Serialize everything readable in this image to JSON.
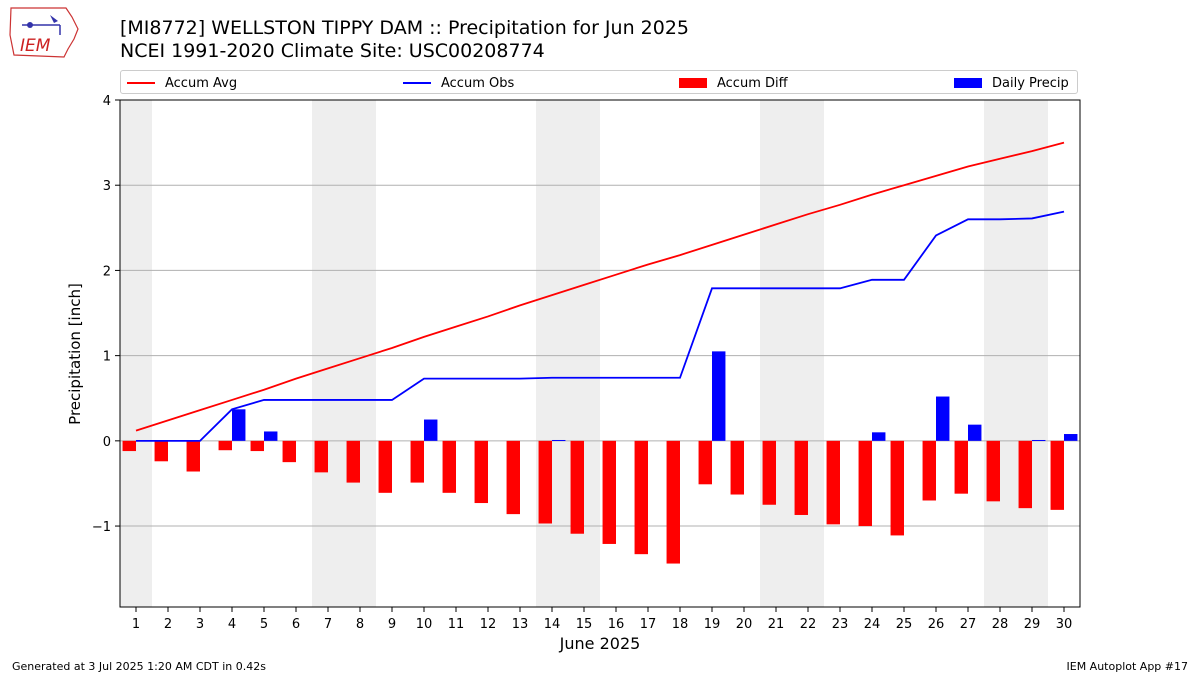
{
  "header": {
    "title_line1": "[MI8772] WELLSTON TIPPY DAM :: Precipitation for Jun 2025",
    "title_line2": "NCEI 1991-2020 Climate Site: USC00208774"
  },
  "logo": {
    "text": "IEM"
  },
  "footer": {
    "generated": "Generated at 3 Jul 2025 1:20 AM CDT in 0.42s",
    "app": "IEM Autoplot App #17"
  },
  "chart_data": {
    "type": "bar",
    "xlabel": "June 2025",
    "ylabel": "Precipitation [inch]",
    "ylim": [
      -1.95,
      4.0
    ],
    "yticks": [
      4,
      3,
      2,
      1,
      0,
      -1
    ],
    "grid": true,
    "legend_position": "top",
    "weekend_shading": [
      [
        1,
        1
      ],
      [
        7,
        8
      ],
      [
        14,
        15
      ],
      [
        21,
        22
      ],
      [
        28,
        29
      ]
    ],
    "x": [
      1,
      2,
      3,
      4,
      5,
      6,
      7,
      8,
      9,
      10,
      11,
      12,
      13,
      14,
      15,
      16,
      17,
      18,
      19,
      20,
      21,
      22,
      23,
      24,
      25,
      26,
      27,
      28,
      29,
      30
    ],
    "series": [
      {
        "name": "Accum Avg",
        "kind": "line",
        "color": "#ff0000",
        "values": [
          0.12,
          0.24,
          0.36,
          0.48,
          0.6,
          0.73,
          0.85,
          0.97,
          1.09,
          1.22,
          1.34,
          1.46,
          1.59,
          1.71,
          1.83,
          1.95,
          2.07,
          2.18,
          2.3,
          2.42,
          2.54,
          2.66,
          2.77,
          2.89,
          3.0,
          3.11,
          3.22,
          3.31,
          3.4,
          3.5
        ]
      },
      {
        "name": "Accum Obs",
        "kind": "line",
        "color": "#0000ff",
        "values": [
          0.0,
          0.0,
          0.0,
          0.37,
          0.48,
          0.48,
          0.48,
          0.48,
          0.48,
          0.73,
          0.73,
          0.73,
          0.73,
          0.74,
          0.74,
          0.74,
          0.74,
          0.74,
          1.79,
          1.79,
          1.79,
          1.79,
          1.79,
          1.89,
          1.89,
          2.41,
          2.6,
          2.6,
          2.61,
          2.69
        ]
      },
      {
        "name": "Accum Diff",
        "kind": "bar",
        "color": "#ff0000",
        "values": [
          -0.12,
          -0.24,
          -0.36,
          -0.11,
          -0.12,
          -0.25,
          -0.37,
          -0.49,
          -0.61,
          -0.49,
          -0.61,
          -0.73,
          -0.86,
          -0.97,
          -1.09,
          -1.21,
          -1.33,
          -1.44,
          -0.51,
          -0.63,
          -0.75,
          -0.87,
          -0.98,
          -1.0,
          -1.11,
          -0.7,
          -0.62,
          -0.71,
          -0.79,
          -0.81
        ]
      },
      {
        "name": "Daily Precip",
        "kind": "bar",
        "color": "#0000ff",
        "values": [
          0.0,
          0.0,
          0.0,
          0.37,
          0.11,
          0.0,
          0.0,
          0.0,
          0.0,
          0.25,
          0.0,
          0.0,
          0.0,
          0.01,
          0.0,
          0.0,
          0.0,
          0.0,
          1.05,
          0.0,
          0.0,
          0.0,
          0.0,
          0.1,
          0.0,
          0.52,
          0.19,
          0.0,
          0.01,
          0.08
        ]
      }
    ]
  }
}
